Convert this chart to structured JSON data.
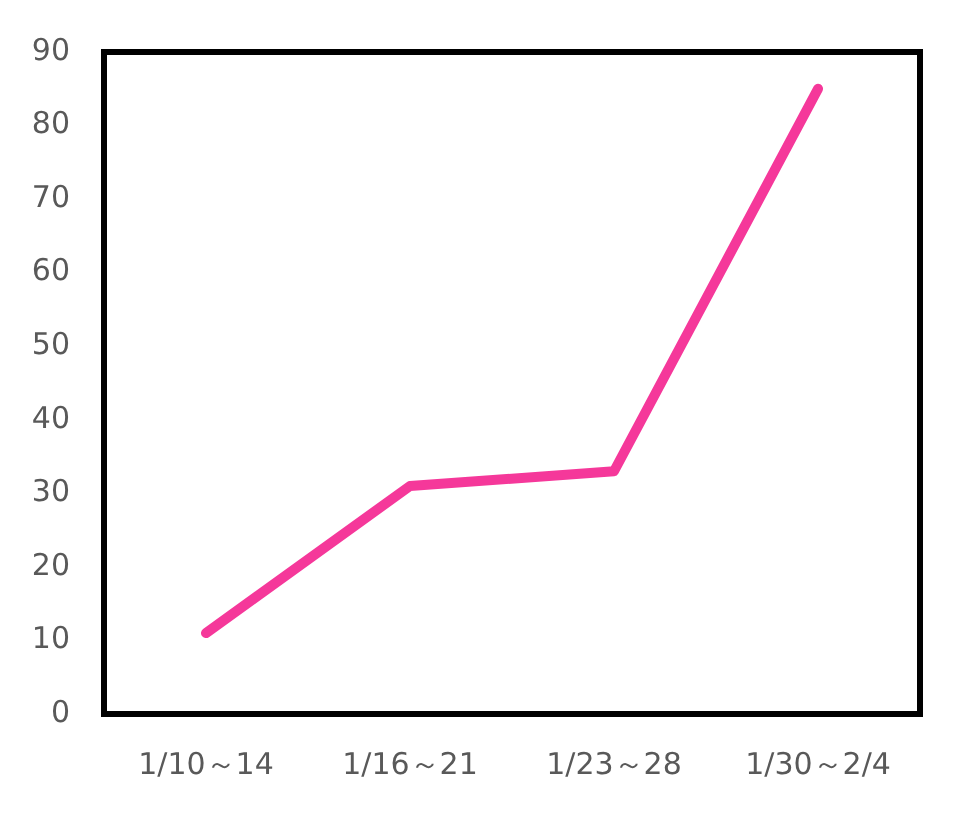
{
  "chart_data": {
    "type": "line",
    "categories": [
      "1/10～14",
      "1/16～21",
      "1/23～28",
      "1/30～2/4"
    ],
    "series": [
      {
        "color": "#f5389a",
        "values": [
          11,
          31,
          33,
          85
        ]
      }
    ],
    "ylim": [
      0,
      90
    ],
    "yticks": [
      0,
      10,
      20,
      30,
      40,
      50,
      60,
      70,
      80,
      90
    ],
    "marker": "none",
    "line_style": "solid"
  }
}
